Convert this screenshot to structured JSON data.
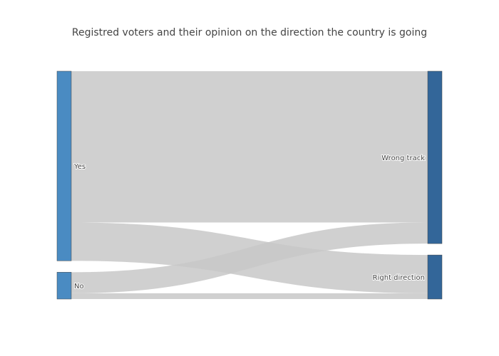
{
  "chart_data": {
    "type": "sankey",
    "title": "Registred voters and their opinion on the direction the country is going",
    "nodes": [
      {
        "id": "yes",
        "label": "Yes",
        "column": 0,
        "color": "#4a8bc2"
      },
      {
        "id": "no",
        "label": "No",
        "column": 0,
        "color": "#4a8bc2"
      },
      {
        "id": "wrong",
        "label": "Wrong track",
        "column": 1,
        "color": "#336699"
      },
      {
        "id": "right",
        "label": "Right direction",
        "column": 1,
        "color": "#336699"
      }
    ],
    "links": [
      {
        "source": "yes",
        "target": "wrong",
        "value": 79
      },
      {
        "source": "yes",
        "target": "right",
        "value": 20
      },
      {
        "source": "no",
        "target": "wrong",
        "value": 11
      },
      {
        "source": "no",
        "target": "right",
        "value": 3
      }
    ],
    "link_color": "#c8c8c8",
    "node_border_color": "#444444"
  }
}
